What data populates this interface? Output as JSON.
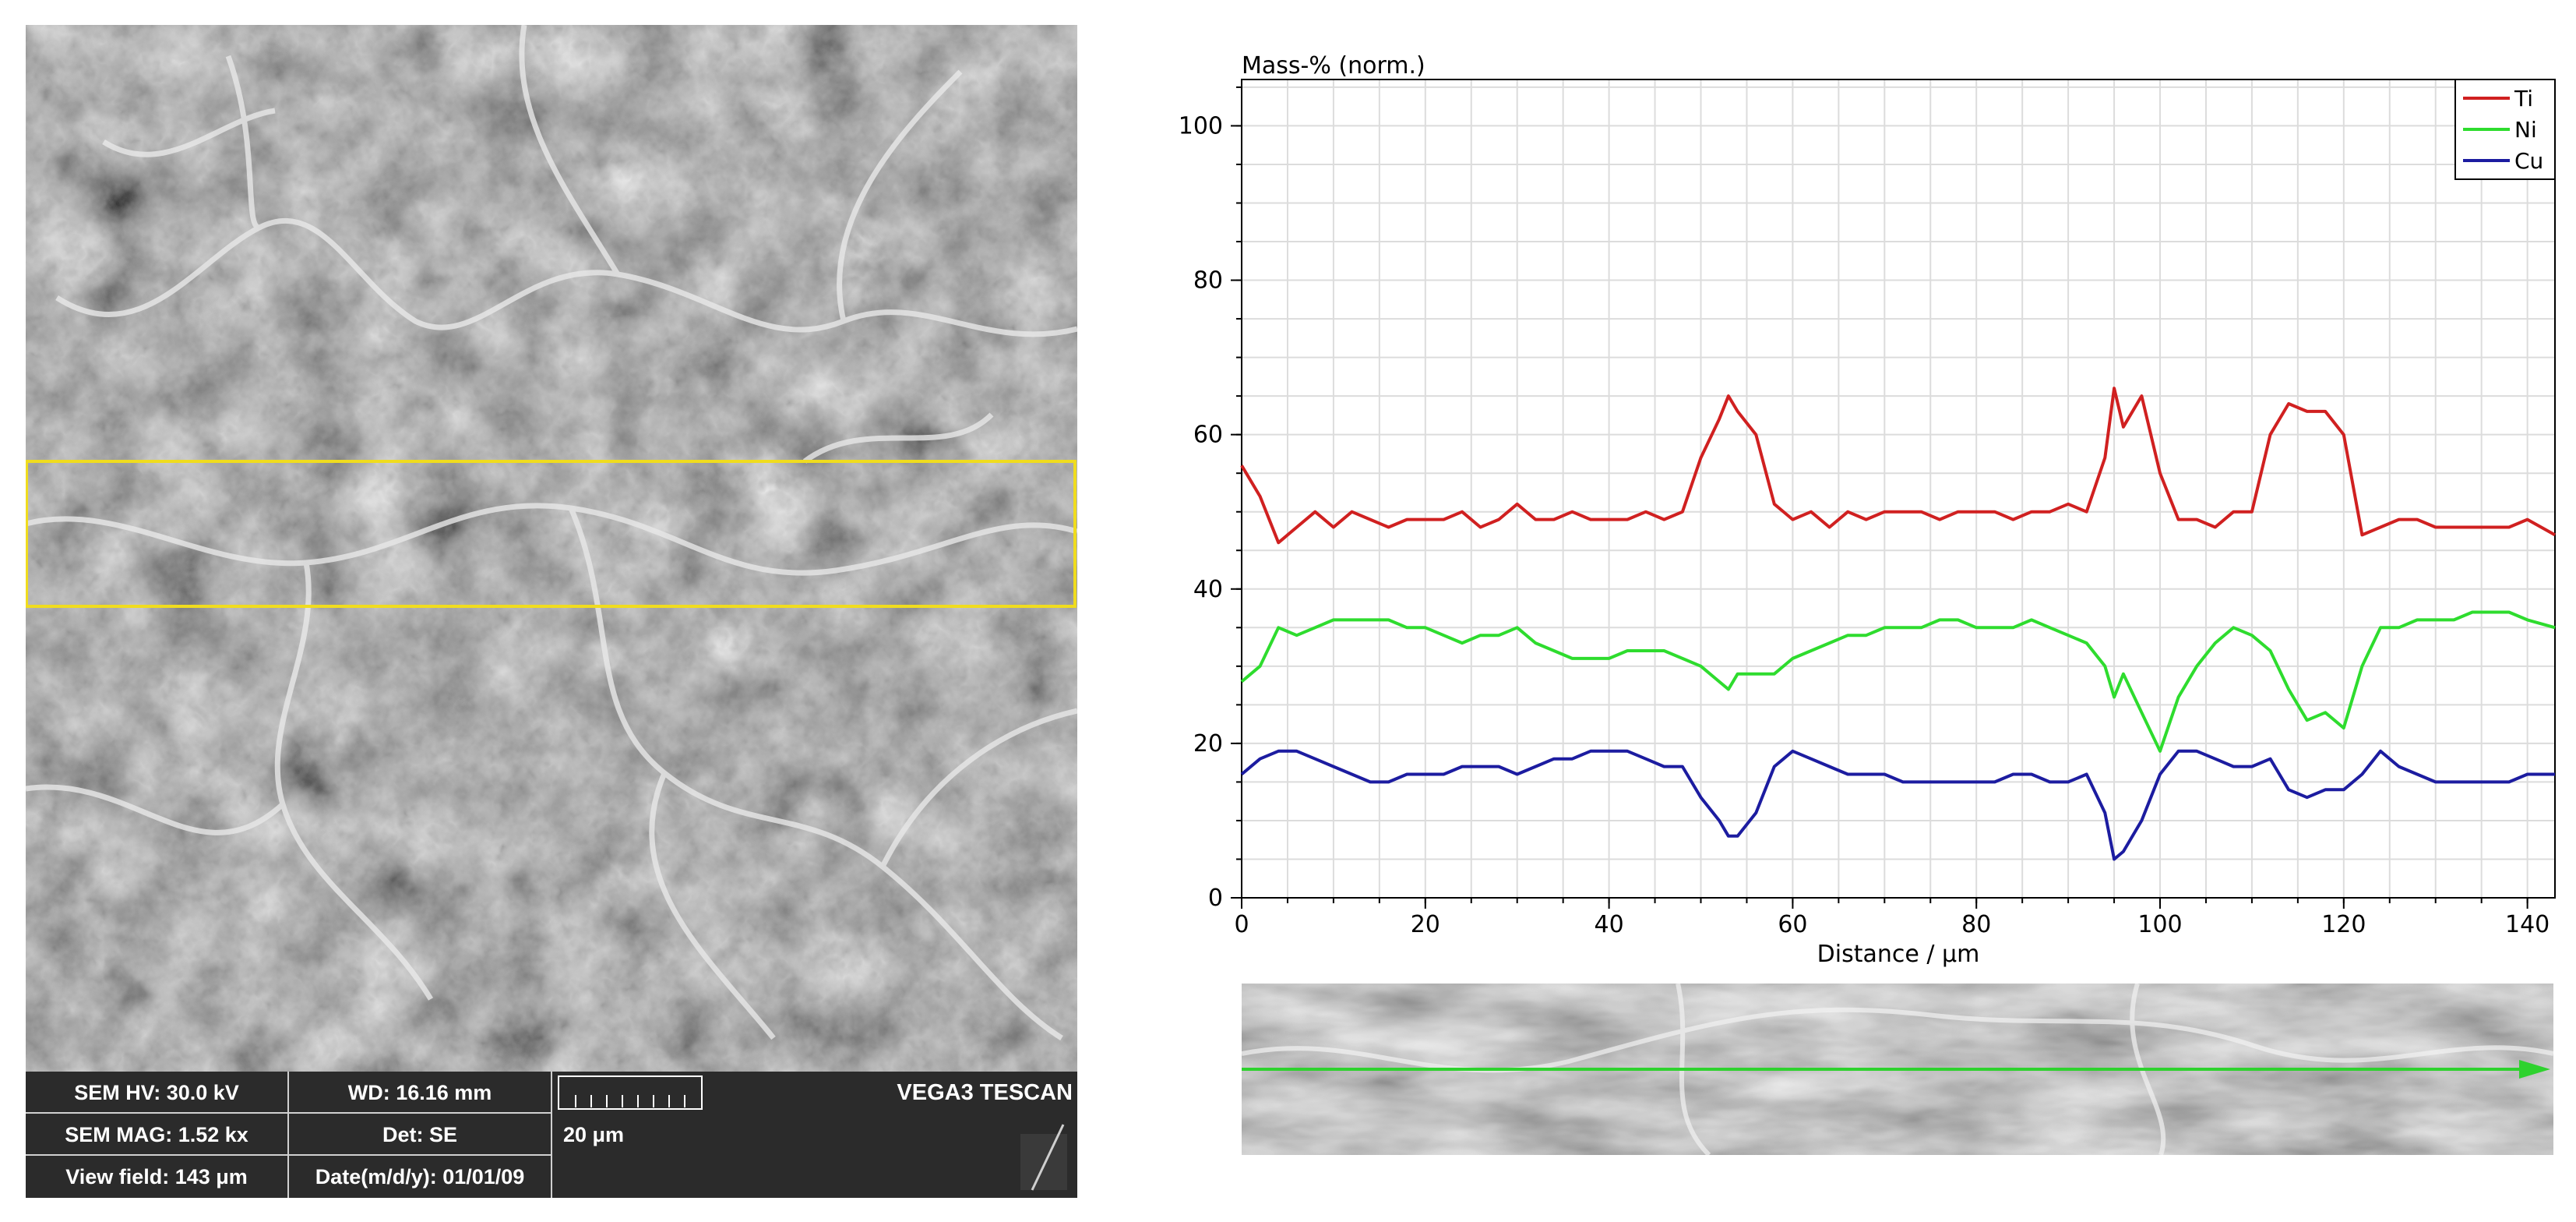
{
  "sem": {
    "hv_label": "SEM HV: 30.0 kV",
    "wd_label": "WD: 16.16 mm",
    "mag_label": "SEM MAG: 1.52 kx",
    "det_label": "Det: SE",
    "scale_label": "20 μm",
    "fov_label": "View field: 143 μm",
    "date_label": "Date(m/d/y): 01/01/09",
    "brand": "VEGA3 TESCAN",
    "selection_color": "#f0dc1e"
  },
  "chart_data": {
    "type": "line",
    "title": "",
    "ylabel": "Mass-% (norm.)",
    "xlabel": "Distance / μm",
    "xlim": [
      0,
      143
    ],
    "ylim": [
      0,
      106
    ],
    "xticks": [
      0,
      20,
      40,
      60,
      80,
      100,
      120,
      140
    ],
    "yticks": [
      0,
      20,
      40,
      60,
      80,
      100
    ],
    "legend_position": "top-right",
    "x": [
      0,
      2,
      4,
      6,
      8,
      10,
      12,
      14,
      16,
      18,
      20,
      22,
      24,
      26,
      28,
      30,
      32,
      34,
      36,
      38,
      40,
      42,
      44,
      46,
      48,
      50,
      52,
      53,
      54,
      56,
      58,
      60,
      62,
      64,
      66,
      68,
      70,
      72,
      74,
      76,
      78,
      80,
      82,
      84,
      86,
      88,
      90,
      92,
      94,
      95,
      96,
      98,
      100,
      102,
      104,
      106,
      108,
      110,
      112,
      114,
      116,
      118,
      120,
      122,
      124,
      126,
      128,
      130,
      132,
      134,
      136,
      138,
      140,
      143
    ],
    "series": [
      {
        "name": "Ti",
        "color": "#d02020",
        "values": [
          56,
          52,
          46,
          48,
          50,
          48,
          50,
          49,
          48,
          49,
          49,
          49,
          50,
          48,
          49,
          51,
          49,
          49,
          50,
          49,
          49,
          49,
          50,
          49,
          50,
          57,
          62,
          65,
          63,
          60,
          51,
          49,
          50,
          48,
          50,
          49,
          50,
          50,
          50,
          49,
          50,
          50,
          50,
          49,
          50,
          50,
          51,
          50,
          57,
          66,
          61,
          65,
          55,
          49,
          49,
          48,
          50,
          50,
          60,
          64,
          63,
          63,
          60,
          47,
          48,
          49,
          49,
          48,
          48,
          48,
          48,
          48,
          49,
          47
        ]
      },
      {
        "name": "Ni",
        "color": "#2edc2e",
        "values": [
          28,
          30,
          35,
          34,
          35,
          36,
          36,
          36,
          36,
          35,
          35,
          34,
          33,
          34,
          34,
          35,
          33,
          32,
          31,
          31,
          31,
          32,
          32,
          32,
          31,
          30,
          28,
          27,
          29,
          29,
          29,
          31,
          32,
          33,
          34,
          34,
          35,
          35,
          35,
          36,
          36,
          35,
          35,
          35,
          36,
          35,
          34,
          33,
          30,
          26,
          29,
          24,
          19,
          26,
          30,
          33,
          35,
          34,
          32,
          27,
          23,
          24,
          22,
          30,
          35,
          35,
          36,
          36,
          36,
          37,
          37,
          37,
          36,
          35
        ]
      },
      {
        "name": "Cu",
        "color": "#1c1ca0",
        "values": [
          16,
          18,
          19,
          19,
          18,
          17,
          16,
          15,
          15,
          16,
          16,
          16,
          17,
          17,
          17,
          16,
          17,
          18,
          18,
          19,
          19,
          19,
          18,
          17,
          17,
          13,
          10,
          8,
          8,
          11,
          17,
          19,
          18,
          17,
          16,
          16,
          16,
          15,
          15,
          15,
          15,
          15,
          15,
          16,
          16,
          15,
          15,
          16,
          11,
          5,
          6,
          10,
          16,
          19,
          19,
          18,
          17,
          17,
          18,
          14,
          13,
          14,
          14,
          16,
          19,
          17,
          16,
          15,
          15,
          15,
          15,
          15,
          16,
          16
        ]
      }
    ]
  },
  "strip": {
    "arrow_color": "#2ed22e"
  }
}
